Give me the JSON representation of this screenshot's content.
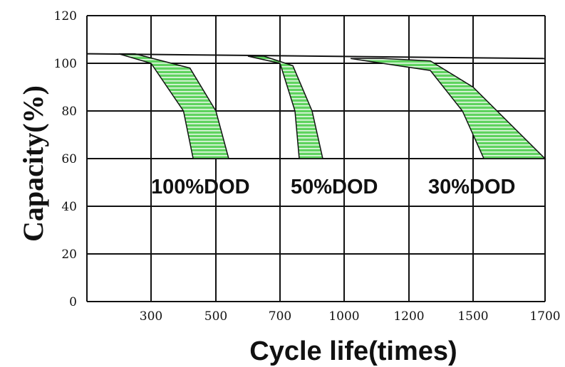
{
  "chart_data": {
    "type": "area",
    "ylabel": "Capacity(%)",
    "xlabel": "Cycle life(times)",
    "x_ticks": [
      "300",
      "500",
      "700",
      "1000",
      "1200",
      "1500",
      "1700"
    ],
    "y_ticks": [
      "0",
      "20",
      "40",
      "60",
      "80",
      "100",
      "120"
    ],
    "ylim": [
      0,
      120
    ],
    "grid": true,
    "fill_color": "#5fd35f",
    "stripe_color": "#ffffff",
    "annotations": [
      "100%DOD",
      "50%DOD",
      "30%DOD"
    ],
    "baseline": {
      "x_start": "<300",
      "y_start": 104,
      "x_end": 1700,
      "y_end": 102
    },
    "series": [
      {
        "upper": [
          [
            200,
            104
          ],
          [
            300,
            100
          ],
          [
            400,
            80
          ],
          [
            430,
            60
          ]
        ],
        "lower": [
          [
            250,
            104
          ],
          [
            420,
            98
          ],
          [
            500,
            80
          ],
          [
            540,
            60
          ]
        ]
      },
      {
        "upper": [
          [
            600,
            103
          ],
          [
            700,
            100
          ],
          [
            770,
            80
          ],
          [
            790,
            60
          ]
        ],
        "lower": [
          [
            650,
            103
          ],
          [
            760,
            99
          ],
          [
            850,
            80
          ],
          [
            900,
            60
          ]
        ]
      },
      {
        "upper": [
          [
            1020,
            102
          ],
          [
            1300,
            97
          ],
          [
            1450,
            80
          ],
          [
            1530,
            60
          ]
        ],
        "lower": [
          [
            1120,
            102
          ],
          [
            1300,
            101
          ],
          [
            1500,
            90
          ],
          [
            1700,
            60
          ]
        ]
      }
    ]
  }
}
